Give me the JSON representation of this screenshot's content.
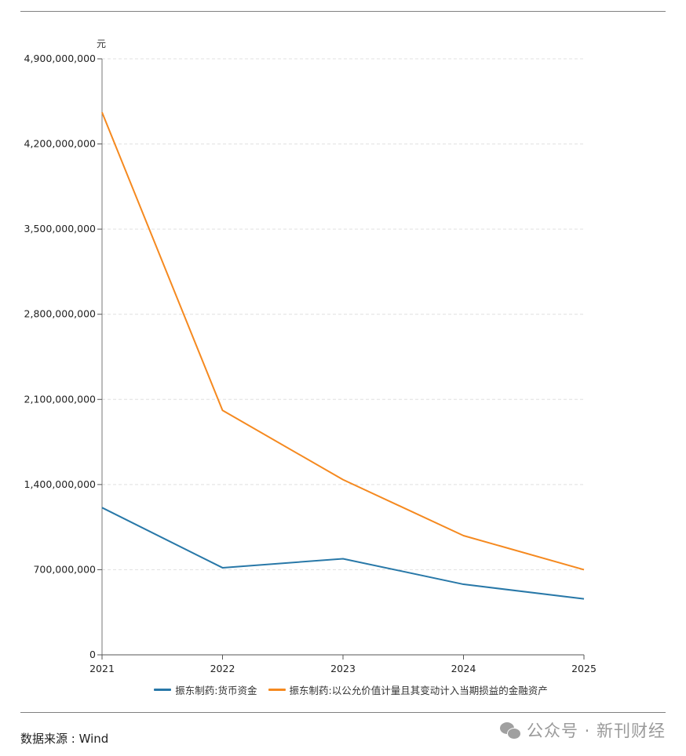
{
  "chart_data": {
    "type": "line",
    "title": "",
    "xlabel": "",
    "ylabel": "元",
    "x": [
      "2021",
      "2022",
      "2023",
      "2024",
      "2025"
    ],
    "ylim": [
      0,
      4900000000
    ],
    "yticks": [
      0,
      700000000,
      1400000000,
      2100000000,
      2800000000,
      3500000000,
      4200000000,
      4900000000
    ],
    "ytick_labels": [
      "0",
      "700,000,000",
      "1,400,000,000",
      "2,100,000,000",
      "2,800,000,000",
      "3,500,000,000",
      "4,200,000,000",
      "4,900,000,000"
    ],
    "grid": true,
    "legend_position": "bottom",
    "series": [
      {
        "name": "振东制药:货币资金",
        "color": "#2878a8",
        "values": [
          1210000000,
          716000000,
          790000000,
          580000000,
          460000000
        ]
      },
      {
        "name": "振东制药:以公允价值计量且其变动计入当期损益的金融资产",
        "color": "#f5891f",
        "values": [
          4460000000,
          2010000000,
          1440000000,
          980000000,
          700000000
        ]
      }
    ]
  },
  "footer": {
    "source": "数据来源 : Wind",
    "watermark": "公众号 · 新刊财经"
  }
}
